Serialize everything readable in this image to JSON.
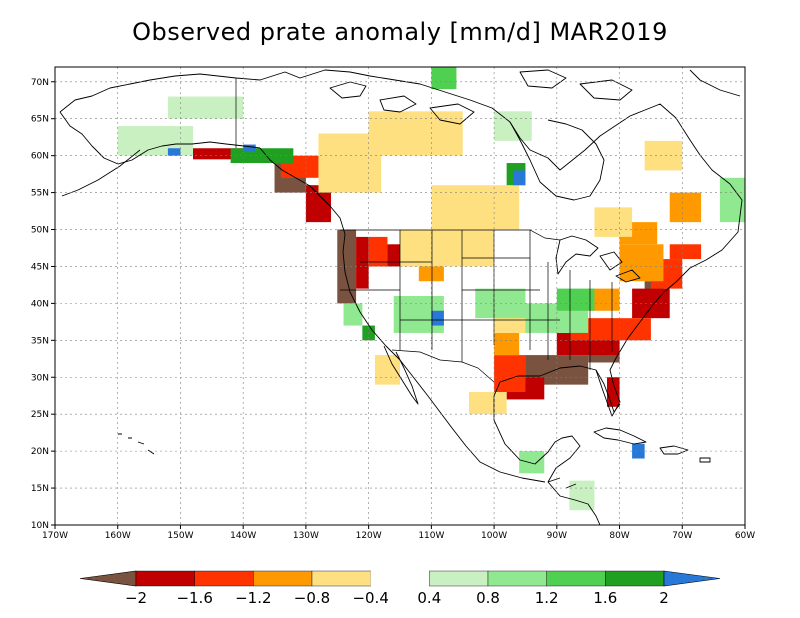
{
  "title": "Observed prate anomaly [mm/d] MAR2019",
  "map": {
    "lon_range": [
      -170,
      -60
    ],
    "lat_range": [
      10,
      72
    ],
    "lat_ticks": [
      {
        "value": 70,
        "label": "70N"
      },
      {
        "value": 65,
        "label": "65N"
      },
      {
        "value": 60,
        "label": "60N"
      },
      {
        "value": 55,
        "label": "55N"
      },
      {
        "value": 50,
        "label": "50N"
      },
      {
        "value": 45,
        "label": "45N"
      },
      {
        "value": 40,
        "label": "40N"
      },
      {
        "value": 35,
        "label": "35N"
      },
      {
        "value": 30,
        "label": "30N"
      },
      {
        "value": 25,
        "label": "25N"
      },
      {
        "value": 20,
        "label": "20N"
      },
      {
        "value": 15,
        "label": "15N"
      },
      {
        "value": 10,
        "label": "10N"
      }
    ],
    "lon_ticks": [
      {
        "value": -170,
        "label": "170W"
      },
      {
        "value": -160,
        "label": "160W"
      },
      {
        "value": -150,
        "label": "150W"
      },
      {
        "value": -140,
        "label": "140W"
      },
      {
        "value": -130,
        "label": "130W"
      },
      {
        "value": -120,
        "label": "120W"
      },
      {
        "value": -110,
        "label": "110W"
      },
      {
        "value": -100,
        "label": "100W"
      },
      {
        "value": -90,
        "label": "90W"
      },
      {
        "value": -80,
        "label": "80W"
      },
      {
        "value": -70,
        "label": "70W"
      },
      {
        "value": -60,
        "label": "60W"
      }
    ]
  },
  "colorbar": {
    "colors": [
      "#7a5240",
      "#c00000",
      "#ff3300",
      "#ff9900",
      "#ffe080",
      "#ffffff",
      "#c8f0c0",
      "#90e890",
      "#50d050",
      "#20a020",
      "#2878d8"
    ],
    "labels": [
      "−2",
      "−1.6",
      "−1.2",
      "−0.8",
      "−0.4",
      "0.4",
      "0.8",
      "1.2",
      "1.6",
      "2"
    ]
  },
  "anomaly_regions": [
    {
      "lon": [
        -125,
        -122
      ],
      "lat": [
        40,
        50
      ],
      "level": -2
    },
    {
      "lon": [
        -135,
        -130
      ],
      "lat": [
        55,
        59
      ],
      "level": -2
    },
    {
      "lon": [
        -95,
        -85
      ],
      "lat": [
        29,
        33
      ],
      "level": -2
    },
    {
      "lon": [
        -85,
        -80
      ],
      "lat": [
        32,
        35
      ],
      "level": -2
    },
    {
      "lon": [
        -76,
        -73
      ],
      "lat": [
        39,
        43
      ],
      "level": -2
    },
    {
      "lon": [
        -122,
        -120
      ],
      "lat": [
        42,
        49
      ],
      "level": -1.6
    },
    {
      "lon": [
        -130,
        -126
      ],
      "lat": [
        51,
        56
      ],
      "level": -1.6
    },
    {
      "lon": [
        -98,
        -92
      ],
      "lat": [
        27,
        30
      ],
      "level": -1.6
    },
    {
      "lon": [
        -90,
        -80
      ],
      "lat": [
        33,
        36
      ],
      "level": -1.6
    },
    {
      "lon": [
        -82,
        -80
      ],
      "lat": [
        26,
        30
      ],
      "level": -1.6
    },
    {
      "lon": [
        -78,
        -72
      ],
      "lat": [
        38,
        42
      ],
      "level": -1.6
    },
    {
      "lon": [
        -117,
        -112
      ],
      "lat": [
        45,
        48
      ],
      "level": -1.6
    },
    {
      "lon": [
        -148,
        -140
      ],
      "lat": [
        59.5,
        61
      ],
      "level": -1.6
    },
    {
      "lon": [
        -120,
        -117
      ],
      "lat": [
        45,
        49
      ],
      "level": -1.2
    },
    {
      "lon": [
        -100,
        -95
      ],
      "lat": [
        28,
        33
      ],
      "level": -1.2
    },
    {
      "lon": [
        -88,
        -75
      ],
      "lat": [
        35,
        38
      ],
      "level": -1.2
    },
    {
      "lon": [
        -75,
        -70
      ],
      "lat": [
        42,
        46
      ],
      "level": -1.2
    },
    {
      "lon": [
        -72,
        -67
      ],
      "lat": [
        46,
        48
      ],
      "level": -1.2
    },
    {
      "lon": [
        -134,
        -128
      ],
      "lat": [
        57,
        60
      ],
      "level": -1.2
    },
    {
      "lon": [
        -112,
        -108
      ],
      "lat": [
        43,
        47
      ],
      "level": -0.8
    },
    {
      "lon": [
        -100,
        -96
      ],
      "lat": [
        33,
        36
      ],
      "level": -0.8
    },
    {
      "lon": [
        -80,
        -73
      ],
      "lat": [
        43,
        48
      ],
      "level": -0.8
    },
    {
      "lon": [
        -80,
        -74
      ],
      "lat": [
        48,
        51
      ],
      "level": -0.8
    },
    {
      "lon": [
        -72,
        -67
      ],
      "lat": [
        51,
        55
      ],
      "level": -0.8
    },
    {
      "lon": [
        -85,
        -80
      ],
      "lat": [
        39,
        42
      ],
      "level": -0.8
    },
    {
      "lon": [
        -128,
        -118
      ],
      "lat": [
        55,
        63
      ],
      "level": -0.4
    },
    {
      "lon": [
        -120,
        -105
      ],
      "lat": [
        60,
        66
      ],
      "level": -0.4
    },
    {
      "lon": [
        -110,
        -96
      ],
      "lat": [
        50,
        56
      ],
      "level": -0.4
    },
    {
      "lon": [
        -115,
        -100
      ],
      "lat": [
        45,
        50
      ],
      "level": -0.4
    },
    {
      "lon": [
        -100,
        -94
      ],
      "lat": [
        36,
        40
      ],
      "level": -0.4
    },
    {
      "lon": [
        -84,
        -78
      ],
      "lat": [
        49,
        53
      ],
      "level": -0.4
    },
    {
      "lon": [
        -76,
        -70
      ],
      "lat": [
        58,
        62
      ],
      "level": -0.4
    },
    {
      "lon": [
        -104,
        -98
      ],
      "lat": [
        25,
        28
      ],
      "level": -0.4
    },
    {
      "lon": [
        -119,
        -115
      ],
      "lat": [
        29,
        33
      ],
      "level": -0.4
    },
    {
      "lon": [
        -124,
        -121
      ],
      "lat": [
        37,
        40
      ],
      "level": 0.8
    },
    {
      "lon": [
        -116,
        -108
      ],
      "lat": [
        36,
        41
      ],
      "level": 0.8
    },
    {
      "lon": [
        -103,
        -95
      ],
      "lat": [
        38,
        42
      ],
      "level": 0.8
    },
    {
      "lon": [
        -95,
        -85
      ],
      "lat": [
        36,
        40
      ],
      "level": 0.8
    },
    {
      "lon": [
        -152,
        -140
      ],
      "lat": [
        65,
        68
      ],
      "level": 0.4
    },
    {
      "lon": [
        -160,
        -148
      ],
      "lat": [
        60,
        64
      ],
      "level": 0.4
    },
    {
      "lon": [
        -100,
        -94
      ],
      "lat": [
        62,
        66
      ],
      "level": 0.4
    },
    {
      "lon": [
        -64,
        -60
      ],
      "lat": [
        51,
        57
      ],
      "level": 0.8
    },
    {
      "lon": [
        -96,
        -92
      ],
      "lat": [
        17,
        20
      ],
      "level": 0.8
    },
    {
      "lon": [
        -88,
        -84
      ],
      "lat": [
        12,
        16
      ],
      "level": 0.4
    },
    {
      "lon": [
        -90,
        -84
      ],
      "lat": [
        39,
        42
      ],
      "level": 1.2
    },
    {
      "lon": [
        -110,
        -106
      ],
      "lat": [
        69,
        72
      ],
      "level": 1.2
    },
    {
      "lon": [
        -142,
        -132
      ],
      "lat": [
        59,
        61
      ],
      "level": 1.6
    },
    {
      "lon": [
        -98,
        -95
      ],
      "lat": [
        56,
        59
      ],
      "level": 1.6
    },
    {
      "lon": [
        -121,
        -119
      ],
      "lat": [
        35,
        37
      ],
      "level": 1.6
    },
    {
      "lon": [
        -110,
        -108
      ],
      "lat": [
        37,
        39
      ],
      "level": 2
    },
    {
      "lon": [
        -152,
        -150
      ],
      "lat": [
        60,
        61
      ],
      "level": 2
    },
    {
      "lon": [
        -140,
        -138
      ],
      "lat": [
        60.5,
        61.5
      ],
      "level": 2
    },
    {
      "lon": [
        -97,
        -95
      ],
      "lat": [
        56,
        58
      ],
      "level": 2
    },
    {
      "lon": [
        -78,
        -76
      ],
      "lat": [
        19,
        21
      ],
      "level": 2
    }
  ]
}
